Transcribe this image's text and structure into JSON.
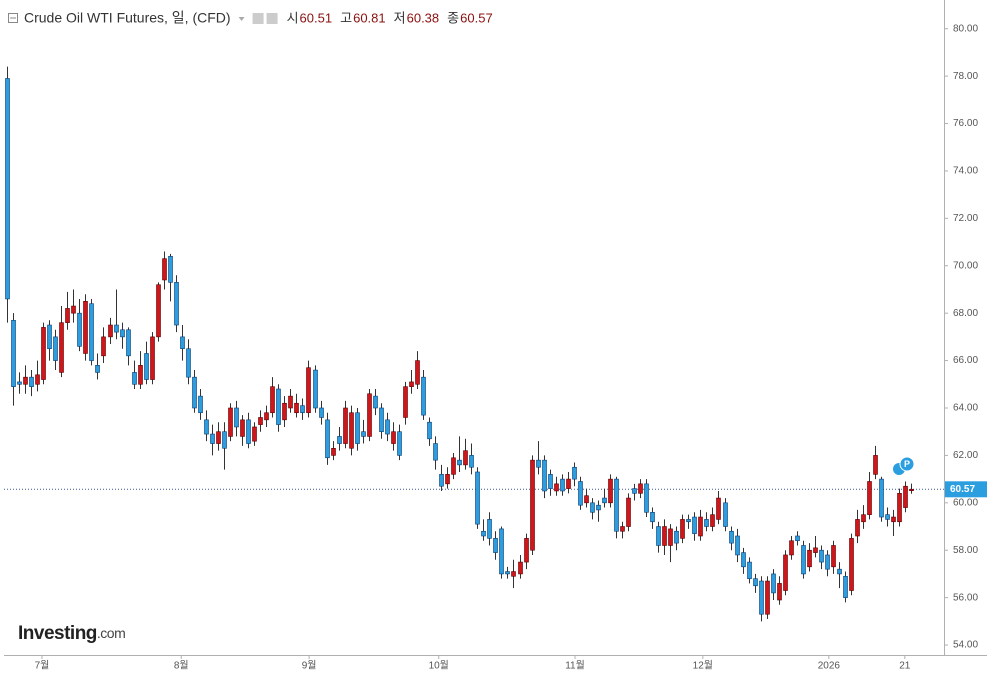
{
  "chart_data": {
    "type": "candlestick",
    "title": "Crude Oil WTI Futures, 일, (CFD)",
    "ohlc_labels": [
      "시",
      "고",
      "저",
      "종"
    ],
    "logo_main": "Investing",
    "logo_suffix": ".com",
    "event_marker": "P",
    "up_color": "#d0161b",
    "down_color": "#2b9ee0",
    "xlim": [
      -0.5,
      155.4
    ],
    "xticks": [
      {
        "value": 5.8,
        "label": "7월"
      },
      {
        "value": 28.9,
        "label": "8월"
      },
      {
        "value": 50.1,
        "label": "9월"
      },
      {
        "value": 71.6,
        "label": "10월"
      },
      {
        "value": 94.2,
        "label": "11월"
      },
      {
        "value": 115.4,
        "label": "12월"
      },
      {
        "value": 136.3,
        "label": "2026"
      },
      {
        "value": 148.9,
        "label": "21"
      }
    ],
    "ylim": [
      53.58,
      81.0
    ],
    "yticks": [
      {
        "value": 54,
        "label": "54.00"
      },
      {
        "value": 56,
        "label": "56.00"
      },
      {
        "value": 58,
        "label": "58.00"
      },
      {
        "value": 60,
        "label": "60.00"
      },
      {
        "value": 62,
        "label": "62.00"
      },
      {
        "value": 64,
        "label": "64.00"
      },
      {
        "value": 66,
        "label": "66.00"
      },
      {
        "value": 68,
        "label": "68.00"
      },
      {
        "value": 70,
        "label": "70.00"
      },
      {
        "value": 72,
        "label": "72.00"
      },
      {
        "value": 74,
        "label": "74.00"
      },
      {
        "value": 76,
        "label": "76.00"
      },
      {
        "value": 78,
        "label": "78.00"
      },
      {
        "value": 80,
        "label": "80.00"
      }
    ],
    "open": [
      77.9,
      67.7,
      65.1,
      65.0,
      65.3,
      65.0,
      65.2,
      67.5,
      67.0,
      65.5,
      67.6,
      68.0,
      68.0,
      66.3,
      68.4,
      65.8,
      66.2,
      67.0,
      67.5,
      67.3,
      67.3,
      65.5,
      65.0,
      66.3,
      65.2,
      67.0,
      69.4,
      70.4,
      69.3,
      67.0,
      66.5,
      65.3,
      64.5,
      63.5,
      62.9,
      62.5,
      63.0,
      62.8,
      64.0,
      62.8,
      63.5,
      62.6,
      63.3,
      63.5,
      63.8,
      64.8,
      63.5,
      64.0,
      63.8,
      64.1,
      63.8,
      65.6,
      64.0,
      63.5,
      62.0,
      62.8,
      62.5,
      62.3,
      63.8,
      63.0,
      62.8,
      64.5,
      64.0,
      63.5,
      62.5,
      63.0,
      63.6,
      64.9,
      65.0,
      65.3,
      63.4,
      62.5,
      61.2,
      60.8,
      61.2,
      61.8,
      61.6,
      62.0,
      61.3,
      58.8,
      59.3,
      58.5,
      58.9,
      57.1,
      56.9,
      57.0,
      57.5,
      58.0,
      61.8,
      61.8,
      61.2,
      60.5,
      61.0,
      60.6,
      61.5,
      60.9,
      60.0,
      60.0,
      59.9,
      60.2,
      60.0,
      61.0,
      58.8,
      59.0,
      60.6,
      60.4,
      60.8,
      59.6,
      59.0,
      58.2,
      58.2,
      58.8,
      58.5,
      59.3,
      59.4,
      58.6,
      59.3,
      59.0,
      59.3,
      60.0,
      58.8,
      58.6,
      57.9,
      57.5,
      56.8,
      56.7,
      55.3,
      57.0,
      55.9,
      56.3,
      57.8,
      58.6,
      58.2,
      57.3,
      57.9,
      58.0,
      57.8,
      57.3,
      57.2,
      56.9,
      56.3,
      58.6,
      59.2,
      59.5,
      61.2,
      61.0,
      59.5,
      59.2,
      59.2,
      59.8,
      60.51
    ],
    "high": [
      78.4,
      68.0,
      65.5,
      65.8,
      65.6,
      66.0,
      67.6,
      67.7,
      67.3,
      68.3,
      68.9,
      69.0,
      68.6,
      68.8,
      68.6,
      66.3,
      67.4,
      67.8,
      69.0,
      67.6,
      67.4,
      66.0,
      66.4,
      66.8,
      67.2,
      69.3,
      70.6,
      70.5,
      69.6,
      67.5,
      66.9,
      65.6,
      64.8,
      63.9,
      63.3,
      63.4,
      63.4,
      64.2,
      64.3,
      63.7,
      63.8,
      63.4,
      63.9,
      64.1,
      65.3,
      65.0,
      64.5,
      64.8,
      64.6,
      64.4,
      66.0,
      65.8,
      64.3,
      63.8,
      62.6,
      63.2,
      64.3,
      64.1,
      64.0,
      63.5,
      64.8,
      64.8,
      64.2,
      63.8,
      63.4,
      63.3,
      65.1,
      65.6,
      66.4,
      65.6,
      63.6,
      62.8,
      61.6,
      61.5,
      62.1,
      62.8,
      62.7,
      62.5,
      61.5,
      59.3,
      59.6,
      58.8,
      59.0,
      57.3,
      57.6,
      57.8,
      58.7,
      62.0,
      62.6,
      62.0,
      61.4,
      61.1,
      61.2,
      61.3,
      61.7,
      61.1,
      60.6,
      60.2,
      60.1,
      60.6,
      61.2,
      61.1,
      59.2,
      60.4,
      60.8,
      61.0,
      61.0,
      59.8,
      59.2,
      59.3,
      59.1,
      59.0,
      59.5,
      59.5,
      59.6,
      59.7,
      59.6,
      59.8,
      60.5,
      60.2,
      59.0,
      58.9,
      58.1,
      57.7,
      57.0,
      56.9,
      56.9,
      57.2,
      56.9,
      58.0,
      58.6,
      58.8,
      58.4,
      58.3,
      58.6,
      58.2,
      58.0,
      58.4,
      57.5,
      57.1,
      58.7,
      59.7,
      59.9,
      61.3,
      62.4,
      61.1,
      59.8,
      59.7,
      60.6,
      60.9,
      60.81
    ],
    "low": [
      67.6,
      64.1,
      64.6,
      64.6,
      64.5,
      64.7,
      65.0,
      66.0,
      65.6,
      65.3,
      67.3,
      67.6,
      66.4,
      66.0,
      65.8,
      65.2,
      65.9,
      66.7,
      66.9,
      66.5,
      65.8,
      64.8,
      64.8,
      65.0,
      65.0,
      66.8,
      69.0,
      68.5,
      67.2,
      66.0,
      65.0,
      63.8,
      63.5,
      62.6,
      62.0,
      62.2,
      61.4,
      62.6,
      62.8,
      62.4,
      62.3,
      62.4,
      63.0,
      63.2,
      63.6,
      63.0,
      63.2,
      63.8,
      63.6,
      63.5,
      63.6,
      63.8,
      63.3,
      61.6,
      61.8,
      62.2,
      62.3,
      62.0,
      62.2,
      62.5,
      62.6,
      63.7,
      62.7,
      62.6,
      62.2,
      61.8,
      63.3,
      64.6,
      64.8,
      63.5,
      62.4,
      61.4,
      60.5,
      60.6,
      61.0,
      61.3,
      61.4,
      61.2,
      58.9,
      58.4,
      58.2,
      57.6,
      56.8,
      56.8,
      56.4,
      56.8,
      57.2,
      57.8,
      61.2,
      60.2,
      60.3,
      60.3,
      60.3,
      60.4,
      60.7,
      59.7,
      59.8,
      59.3,
      59.2,
      59.8,
      59.8,
      58.5,
      58.5,
      58.8,
      60.1,
      60.2,
      59.4,
      58.9,
      57.9,
      57.8,
      57.5,
      58.0,
      58.3,
      58.9,
      58.4,
      58.4,
      58.8,
      58.8,
      59.1,
      58.8,
      58.0,
      57.5,
      57.0,
      56.6,
      56.2,
      55.0,
      55.1,
      55.9,
      55.7,
      56.1,
      57.6,
      58.2,
      56.8,
      57.1,
      57.7,
      57.2,
      56.9,
      57.0,
      56.4,
      55.8,
      56.1,
      58.3,
      58.9,
      59.3,
      61.0,
      59.2,
      59.0,
      58.6,
      59.0,
      59.6,
      60.38
    ],
    "close": [
      68.6,
      64.9,
      65.0,
      65.3,
      64.9,
      65.4,
      67.4,
      66.5,
      66.0,
      67.6,
      68.2,
      68.3,
      66.6,
      68.5,
      66.0,
      65.5,
      67.0,
      67.5,
      67.2,
      67.0,
      66.2,
      65.0,
      65.8,
      65.2,
      67.0,
      69.2,
      70.3,
      69.3,
      67.5,
      66.5,
      65.3,
      64.0,
      63.8,
      62.9,
      62.5,
      63.0,
      62.3,
      64.0,
      63.2,
      63.5,
      62.5,
      63.2,
      63.6,
      63.8,
      64.9,
      63.3,
      64.2,
      64.5,
      64.2,
      63.8,
      65.7,
      64.0,
      63.6,
      61.9,
      62.3,
      62.5,
      64.0,
      63.8,
      62.5,
      62.8,
      64.6,
      64.0,
      63.0,
      62.9,
      63.0,
      62.0,
      64.9,
      65.1,
      66.0,
      63.7,
      62.7,
      61.8,
      60.7,
      61.2,
      61.9,
      61.6,
      62.2,
      61.5,
      59.1,
      58.6,
      58.5,
      57.9,
      57.0,
      57.0,
      57.1,
      57.5,
      58.5,
      61.8,
      61.5,
      60.5,
      60.6,
      60.8,
      60.5,
      61.0,
      61.0,
      59.9,
      60.3,
      59.6,
      59.7,
      60.0,
      61.0,
      58.8,
      59.0,
      60.2,
      60.4,
      60.8,
      59.6,
      59.2,
      58.2,
      59.0,
      58.9,
      58.3,
      59.3,
      59.2,
      58.7,
      59.4,
      59.0,
      59.5,
      60.2,
      59.0,
      58.3,
      57.8,
      57.3,
      56.8,
      56.5,
      55.3,
      56.7,
      56.2,
      56.6,
      57.8,
      58.4,
      58.4,
      57.0,
      58.0,
      58.1,
      57.5,
      57.2,
      58.2,
      57.0,
      56.0,
      58.5,
      59.3,
      59.5,
      60.9,
      62.0,
      59.4,
      59.3,
      59.4,
      60.4,
      60.7,
      60.57
    ]
  }
}
